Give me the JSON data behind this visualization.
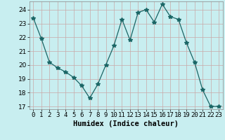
{
  "xlabel": "Humidex (Indice chaleur)",
  "x_values": [
    0,
    1,
    2,
    3,
    4,
    5,
    6,
    7,
    8,
    9,
    10,
    11,
    12,
    13,
    14,
    15,
    16,
    17,
    18,
    19,
    20,
    21,
    22,
    23
  ],
  "y_values": [
    23.4,
    21.9,
    20.2,
    19.8,
    19.5,
    19.1,
    18.5,
    17.6,
    18.6,
    20.0,
    21.4,
    23.3,
    21.8,
    23.8,
    24.0,
    23.1,
    24.4,
    23.5,
    23.3,
    21.6,
    20.2,
    18.2,
    17.0,
    17.0
  ],
  "line_color": "#1a6666",
  "marker": "*",
  "marker_size": 4,
  "background_color": "#c8eef0",
  "grid_color": "#b0d8d8",
  "ylim": [
    16.8,
    24.6
  ],
  "yticks": [
    17,
    18,
    19,
    20,
    21,
    22,
    23,
    24
  ],
  "tick_label_fontsize": 6.5,
  "xlabel_fontsize": 7.5
}
